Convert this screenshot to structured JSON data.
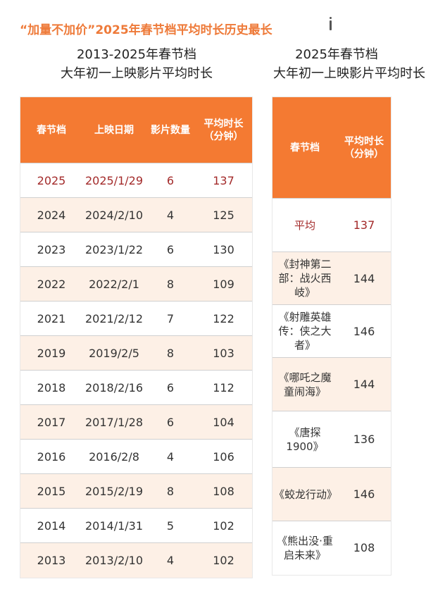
{
  "headline": "“加量不加价”2025年春节档平均时长历史最长",
  "left": {
    "subtitle_line1": "2013-2025年春节档",
    "subtitle_line2": "大年初一上映影片平均时长",
    "headers": [
      "春节档",
      "上映日期",
      "影片数量",
      "平均时长（分钟）"
    ],
    "rows": [
      [
        "2025",
        "2025/1/29",
        "6",
        "137"
      ],
      [
        "2024",
        "2024/2/10",
        "4",
        "125"
      ],
      [
        "2023",
        "2023/1/22",
        "6",
        "130"
      ],
      [
        "2022",
        "2022/2/1",
        "8",
        "109"
      ],
      [
        "2021",
        "2021/2/12",
        "7",
        "122"
      ],
      [
        "2019",
        "2019/2/5",
        "8",
        "103"
      ],
      [
        "2018",
        "2018/2/16",
        "6",
        "112"
      ],
      [
        "2017",
        "2017/1/28",
        "6",
        "104"
      ],
      [
        "2016",
        "2016/2/8",
        "4",
        "106"
      ],
      [
        "2015",
        "2015/2/19",
        "8",
        "108"
      ],
      [
        "2014",
        "2014/1/31",
        "5",
        "102"
      ],
      [
        "2013",
        "2013/2/10",
        "4",
        "102"
      ]
    ]
  },
  "right": {
    "subtitle_line1": "2025年春节档",
    "subtitle_line2": "大年初一上映影片平均时长",
    "headers": [
      "春节档",
      "平均时长（分钟）"
    ],
    "rows": [
      [
        "平均",
        "137"
      ],
      [
        "《封神第二部：战火西岐》",
        "144"
      ],
      [
        "《射雕英雄传：侠之大者》",
        "146"
      ],
      [
        "《哪吒之魔童闹海》",
        "144"
      ],
      [
        "《唐探1900》",
        "136"
      ],
      [
        "《蛟龙行动》",
        "146"
      ],
      [
        "《熊出没·重启未来》",
        "108"
      ]
    ]
  }
}
